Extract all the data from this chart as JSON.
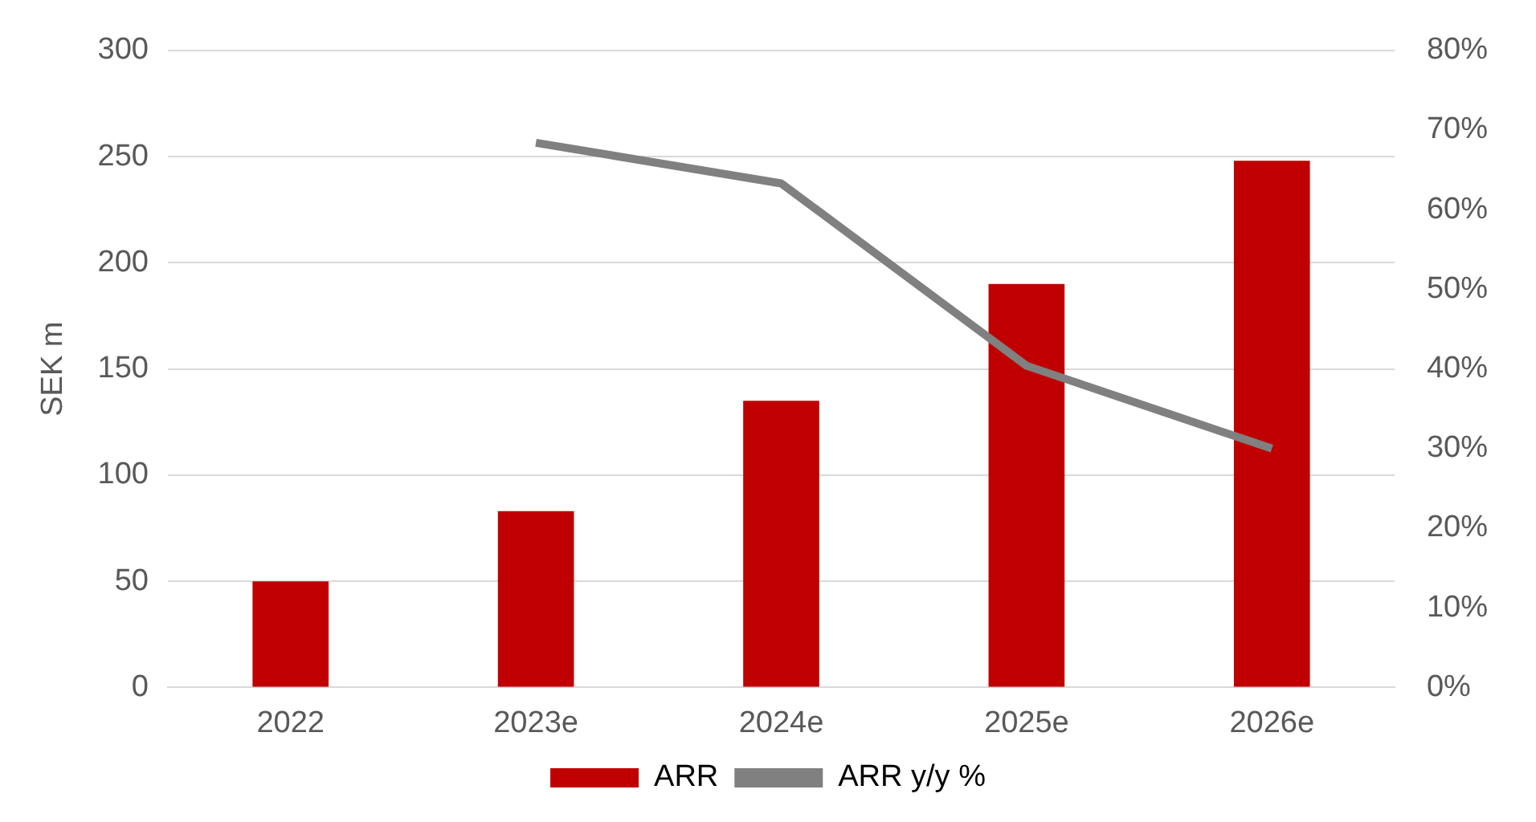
{
  "chart_data": {
    "type": "bar",
    "ylabel": "SEK m",
    "categories": [
      "2022",
      "2023e",
      "2024e",
      "2025e",
      "2026e"
    ],
    "series": [
      {
        "name": "ARR",
        "color": "#c00000",
        "values": [
          50,
          83,
          135,
          190,
          248
        ]
      },
      {
        "name": "ARR y/y %",
        "type": "line",
        "axis": "y2",
        "color": "#808080",
        "values": [
          null,
          68.4,
          63.3,
          40.4,
          30
        ]
      }
    ],
    "ylim": [
      0,
      300
    ],
    "yticks": [
      0,
      50,
      100,
      150,
      200,
      250,
      300
    ],
    "y2lim": [
      0,
      80
    ],
    "y2ticks": [
      {
        "value": 0,
        "label": "0%"
      },
      {
        "value": 10,
        "label": "10%"
      },
      {
        "value": 20,
        "label": "20%"
      },
      {
        "value": 30,
        "label": "30%"
      },
      {
        "value": 40,
        "label": "40%"
      },
      {
        "value": 50,
        "label": "50%"
      },
      {
        "value": 60,
        "label": "60%"
      },
      {
        "value": 70,
        "label": "70%"
      },
      {
        "value": 80,
        "label": "80%"
      }
    ],
    "grid": "y",
    "legend": "bottom",
    "marker": "none"
  }
}
